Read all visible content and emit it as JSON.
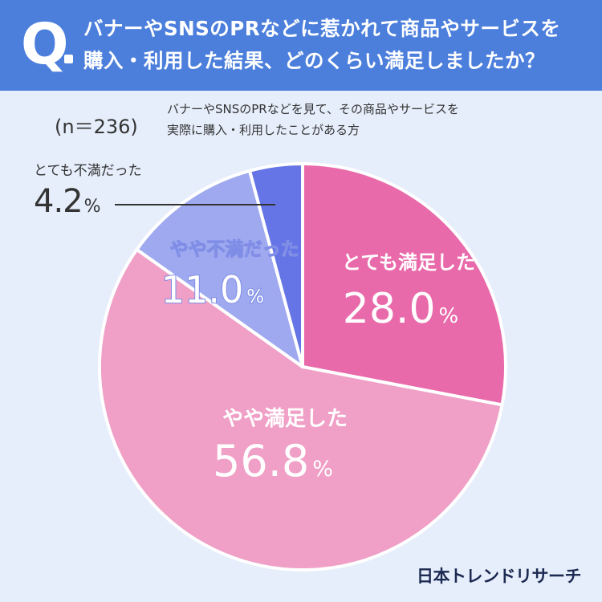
{
  "question": {
    "mark": "Q",
    "text_line1": "バナーやSNSのPRなどに惹かれて商品やサービスを",
    "text_line2": "購入・利用した結果、どのくらい満足しましたか？"
  },
  "sample": {
    "size": "(n＝236)",
    "desc_line1": "バナーやSNSのPRなどを見て、その商品やサービスを",
    "desc_line2": "実際に購入・利用したことがある方"
  },
  "logo": "日本トレンドリサーチ",
  "colors": {
    "header_bg": "#4c7fdc",
    "page_bg": "#e6eefb",
    "very_satisfied": "#e96aaa",
    "somewhat_satisfied": "#f09fc6",
    "somewhat_dissatisfied": "#9ea9ef",
    "very_dissatisfied": "#6575e5"
  },
  "chart_data": {
    "type": "pie",
    "unit": "%",
    "slices": [
      {
        "label": "とても満足した",
        "value": 28.0,
        "display": "28.0",
        "color": "#e96aaa"
      },
      {
        "label": "やや満足した",
        "value": 56.8,
        "display": "56.8",
        "color": "#f09fc6"
      },
      {
        "label": "やや不満だった",
        "value": 11.0,
        "display": "11.0",
        "color": "#9ea9ef"
      },
      {
        "label": "とても不満だった",
        "value": 4.2,
        "display": "4.2",
        "color": "#6575e5"
      }
    ]
  }
}
